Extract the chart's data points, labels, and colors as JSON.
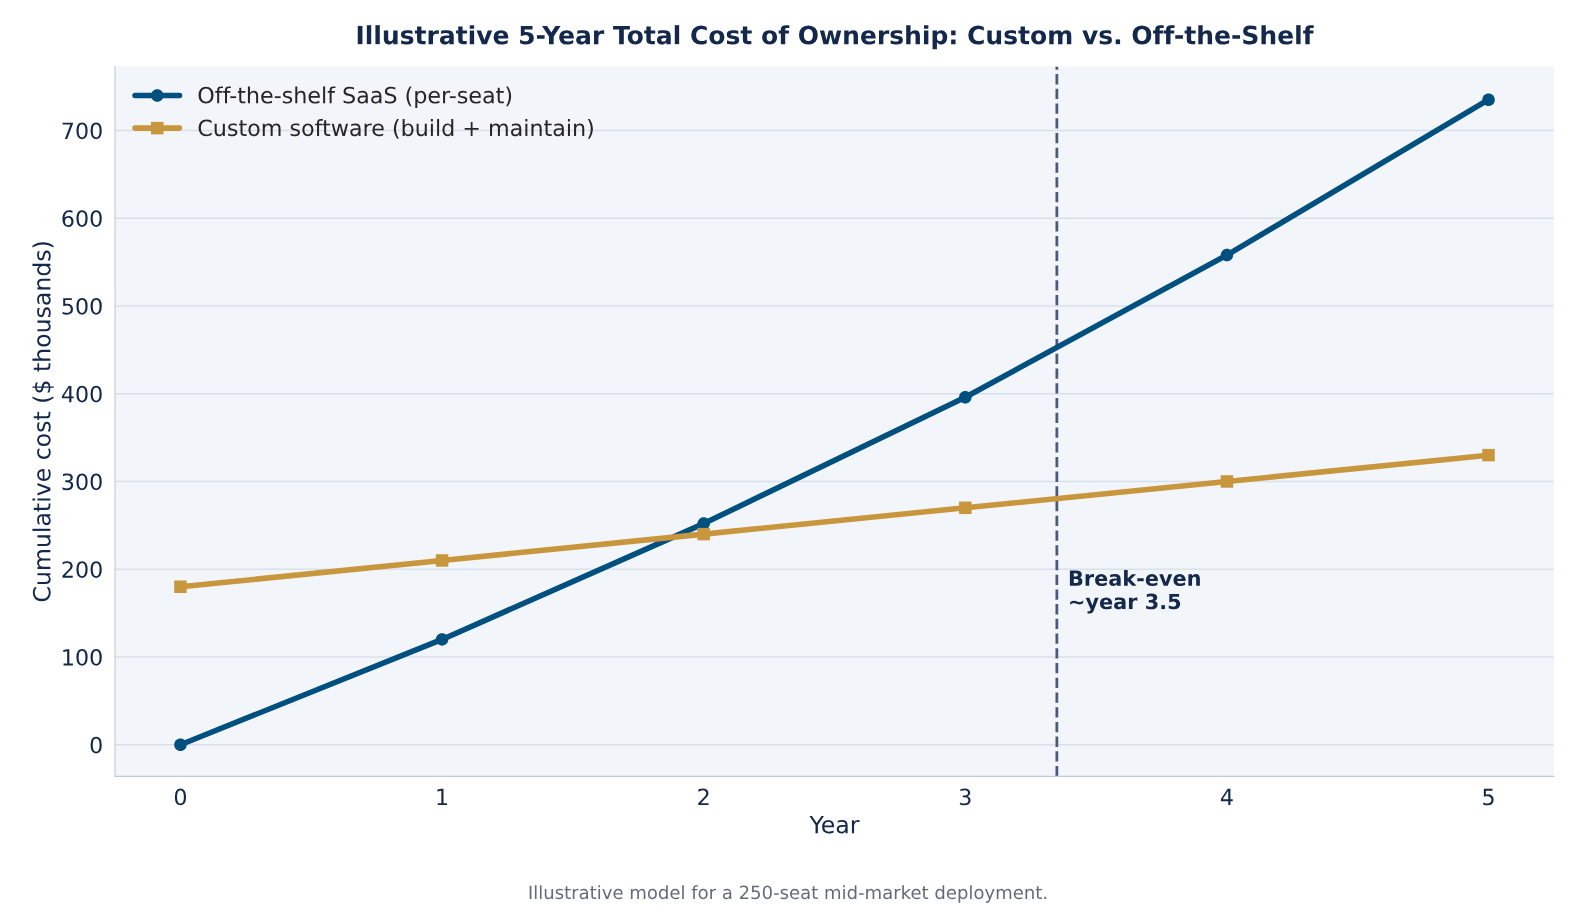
{
  "chart_data": {
    "type": "line",
    "title": "Illustrative 5-Year Total Cost of Ownership: Custom vs. Off-the-Shelf",
    "xlabel": "Year",
    "ylabel": "Cumulative cost ($ thousands)",
    "x": [
      0,
      1,
      2,
      3,
      4,
      5
    ],
    "series": [
      {
        "name": "Off-the-shelf SaaS (per-seat)",
        "color": "#00507f",
        "marker": "circle",
        "values": [
          0,
          120,
          252,
          396,
          558,
          735
        ]
      },
      {
        "name": "Custom software (build + maintain)",
        "color": "#c8963c",
        "marker": "square",
        "values": [
          180,
          210,
          240,
          270,
          300,
          330
        ]
      }
    ],
    "xlim": [
      -0.25,
      5.25
    ],
    "xticks": [
      0,
      1,
      2,
      3,
      4,
      5
    ],
    "ylim": [
      -36,
      773
    ],
    "yticks": [
      0,
      100,
      200,
      300,
      400,
      500,
      600,
      700
    ],
    "ref_lines": [
      {
        "axis": "x",
        "value": 3.35,
        "color": "#4a5a78",
        "line_style": "dashed",
        "label": "Break-even\n~year 3.5"
      }
    ],
    "annotations": [
      "Illustrative model for a 250-seat mid-market deployment."
    ],
    "grid": "y",
    "legend": "top left",
    "line_style": "solid"
  }
}
